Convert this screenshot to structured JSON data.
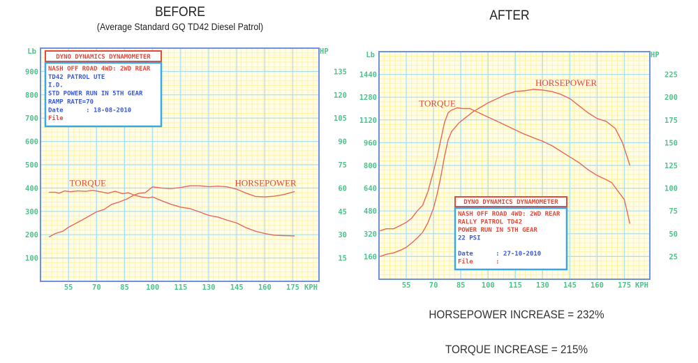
{
  "titles": {
    "before": "BEFORE",
    "before_subtitle": "(Average Standard GQ TD42 Diesel Patrol)",
    "after": "AFTER"
  },
  "summary": {
    "horsepower_increase": "HORSEPOWER INCREASE = 232%",
    "torque_increase": "TORQUE INCREASE = 215%"
  },
  "colors": {
    "frame": "#6f8fe0",
    "grid_major": "#a8e0f2",
    "grid_minor": "#fff3a0",
    "background": "#fffde8",
    "curve": "#e8675a",
    "tick": "#4cc48a",
    "box_red": "#e24a3a",
    "box_blue": "#3aa8e8",
    "text_blue": "#3a5ad8"
  },
  "chart_data": [
    {
      "type": "line",
      "title": "BEFORE",
      "subtitle": "(Average Standard GQ TD42 Diesel Patrol)",
      "xlabel": "KPH",
      "ylabel_left": "Lb",
      "ylabel_right": "HP",
      "x_ticks": [
        55,
        70,
        85,
        100,
        115,
        130,
        145,
        160,
        175
      ],
      "y_left_ticks": [
        100,
        200,
        300,
        400,
        500,
        600,
        700,
        800,
        900
      ],
      "y_right_ticks": [
        15,
        30,
        45,
        60,
        75,
        90,
        105,
        120,
        135
      ],
      "xlim": [
        40,
        189
      ],
      "ylim_left": [
        0,
        1000
      ],
      "ylim_right": [
        0,
        150
      ],
      "grid": true,
      "legend": "inline labels",
      "annotations": [
        {
          "text": "TORQUE",
          "kph": 55.5,
          "lb": 408
        },
        {
          "text": "HORSEPOWER",
          "kph": 144,
          "lb": 408
        }
      ],
      "info_box": {
        "header": "DYNO DYNAMICS DYNAMOMETER",
        "lines": [
          {
            "text": "NASH OFF ROAD 4WD: 2WD REAR",
            "color": "red"
          },
          {
            "text": "TD42 PATROL UTE",
            "color": "blue"
          },
          {
            "text": "I.D.",
            "color": "blue"
          },
          {
            "text": "STD POWER RUN IN 5TH GEAR",
            "color": "blue"
          },
          {
            "text": "RAMP RATE=70",
            "color": "blue"
          },
          {
            "text": "Date      : 18-08-2010",
            "color": "blue"
          },
          {
            "text": "File",
            "color": "red"
          }
        ]
      },
      "series": [
        {
          "name": "TORQUE",
          "axis": "left",
          "x": [
            44.5,
            48,
            50,
            53,
            56,
            60,
            64,
            68,
            72,
            76,
            80,
            84,
            87,
            90,
            93,
            96,
            100,
            105,
            110,
            115,
            120,
            125,
            130,
            135,
            140,
            145,
            150,
            155,
            160,
            165,
            170,
            176
          ],
          "y": [
            382,
            382,
            378,
            388,
            384,
            388,
            386,
            390,
            384,
            378,
            386,
            376,
            380,
            370,
            378,
            380,
            405,
            400,
            398,
            402,
            410,
            410,
            406,
            408,
            405,
            395,
            378,
            364,
            362,
            365,
            372,
            385
          ]
        },
        {
          "name": "HORSEPOWER",
          "axis": "left",
          "x": [
            44.5,
            48,
            52,
            55,
            58,
            62,
            66,
            70,
            74,
            78,
            82,
            86,
            90,
            94,
            98,
            100,
            105,
            110,
            115,
            120,
            125,
            130,
            135,
            140,
            145,
            150,
            155,
            160,
            165,
            170,
            176
          ],
          "y": [
            190,
            205,
            215,
            232,
            245,
            262,
            280,
            298,
            308,
            330,
            340,
            352,
            370,
            362,
            358,
            362,
            345,
            330,
            318,
            312,
            298,
            283,
            275,
            262,
            250,
            230,
            215,
            205,
            198,
            196,
            195
          ]
        }
      ]
    },
    {
      "type": "line",
      "title": "AFTER",
      "xlabel": "KPH",
      "ylabel_left": "Lb",
      "ylabel_right": "HP",
      "x_ticks": [
        55,
        70,
        85,
        100,
        115,
        130,
        145,
        160,
        175
      ],
      "y_left_ticks": [
        160,
        320,
        480,
        640,
        800,
        960,
        1120,
        1280,
        1440
      ],
      "y_right_ticks": [
        25,
        50,
        75,
        100,
        125,
        150,
        175,
        200,
        225
      ],
      "xlim": [
        40,
        189
      ],
      "ylim_left": [
        0,
        1600
      ],
      "ylim_right": [
        0,
        250
      ],
      "grid": true,
      "legend": "inline labels",
      "annotations": [
        {
          "text": "TORQUE",
          "kph": 62,
          "lb": 1215
        },
        {
          "text": "HORSEPOWER",
          "kph": 126,
          "lb": 1360
        }
      ],
      "info_box": {
        "header": "DYNO DYNAMICS DYNAMOMETER",
        "lines": [
          {
            "text": "NASH OFF ROAD 4WD: 2WD REAR",
            "color": "red"
          },
          {
            "text": "RALLY PATROL TD42",
            "color": "red"
          },
          {
            "text": "POWER RUN IN 5TH GEAR",
            "color": "red"
          },
          {
            "text": "22 PSI",
            "color": "blue"
          },
          {
            "text": "",
            "color": "blue"
          },
          {
            "text": "Date      : 27-10-2010",
            "color": "blue"
          },
          {
            "text": "File      :",
            "color": "red"
          }
        ]
      },
      "series": [
        {
          "name": "TORQUE",
          "axis": "left",
          "x": [
            40.5,
            44,
            48,
            52,
            55,
            58,
            61,
            64,
            67,
            70,
            72,
            74,
            76,
            78,
            80,
            83,
            86,
            90,
            95,
            100,
            105,
            110,
            115,
            120,
            125,
            130,
            135,
            140,
            145,
            150,
            155,
            160,
            165,
            168,
            172,
            175,
            178
          ],
          "y": [
            340,
            355,
            355,
            380,
            400,
            430,
            480,
            520,
            620,
            760,
            860,
            980,
            1100,
            1170,
            1190,
            1205,
            1200,
            1200,
            1170,
            1140,
            1110,
            1080,
            1050,
            1020,
            995,
            970,
            940,
            900,
            860,
            820,
            770,
            730,
            700,
            680,
            610,
            560,
            390
          ]
        },
        {
          "name": "HORSEPOWER",
          "axis": "left",
          "x": [
            40.5,
            44,
            48,
            52,
            55,
            58,
            61,
            64,
            67,
            70,
            72,
            74,
            76,
            78,
            80,
            84,
            88,
            92,
            96,
            100,
            105,
            110,
            115,
            120,
            125,
            130,
            135,
            140,
            145,
            150,
            155,
            160,
            165,
            170,
            174,
            178
          ],
          "y": [
            160,
            175,
            185,
            205,
            225,
            255,
            290,
            330,
            400,
            500,
            600,
            720,
            860,
            980,
            1040,
            1100,
            1140,
            1180,
            1210,
            1240,
            1270,
            1300,
            1320,
            1325,
            1335,
            1330,
            1320,
            1300,
            1270,
            1220,
            1170,
            1130,
            1110,
            1060,
            960,
            800
          ]
        }
      ]
    }
  ]
}
